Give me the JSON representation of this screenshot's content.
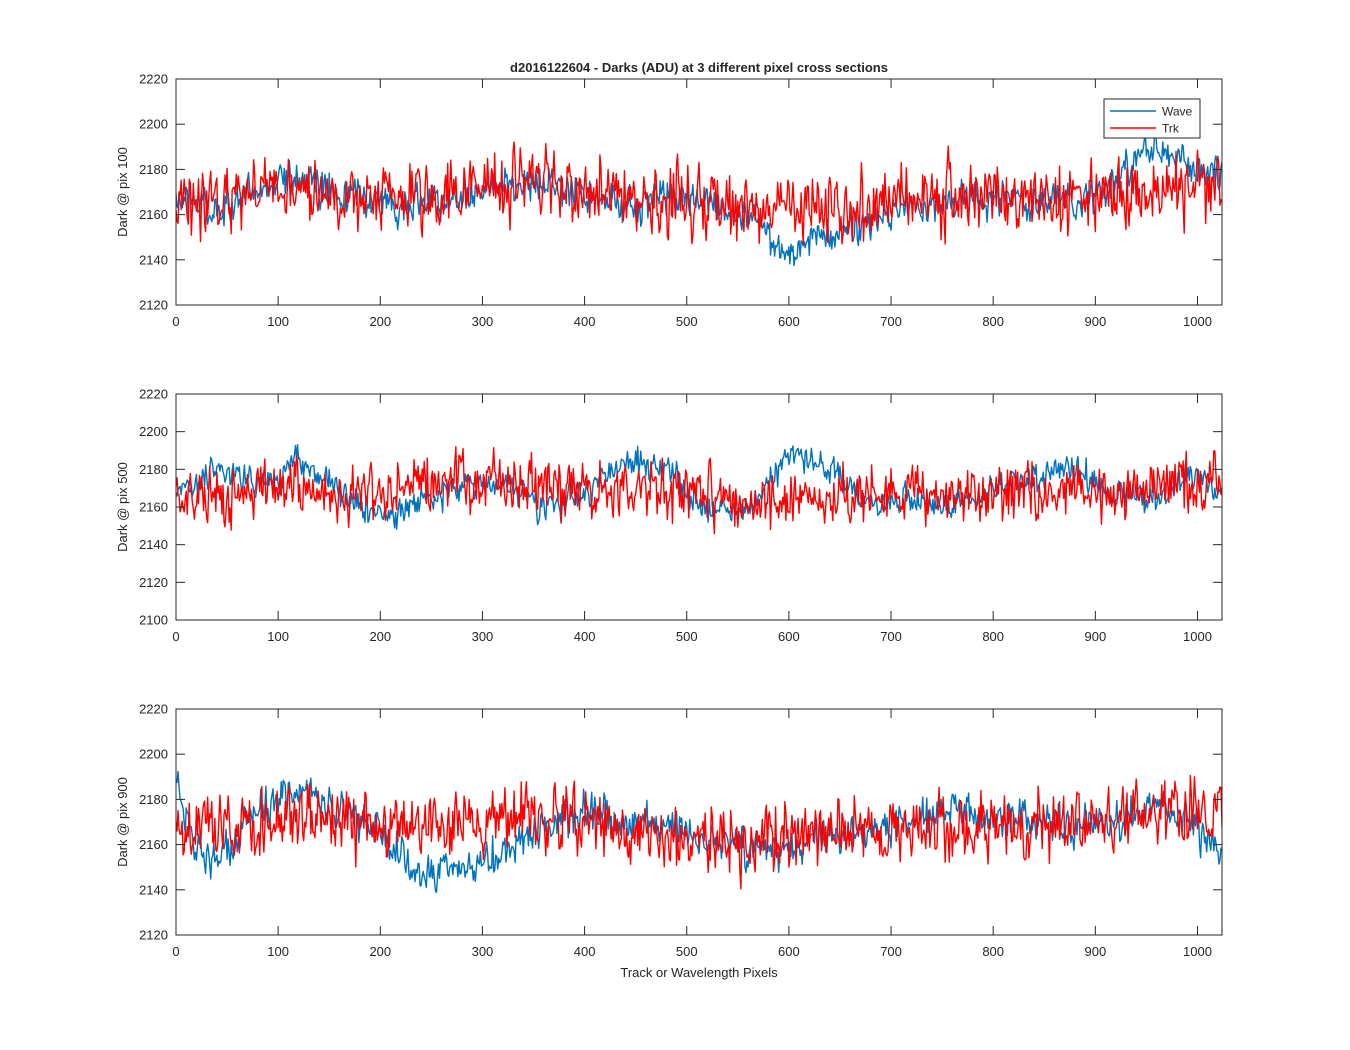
{
  "figure": {
    "title": "d2016122604 - Darks (ADU) at 3 different pixel cross sections",
    "xlabel": "Track or Wavelength Pixels"
  },
  "colors": {
    "wave": "#0072BD",
    "trk": "#FF0000",
    "axes": "#262626"
  },
  "chart_data": [
    {
      "type": "line",
      "ylabel": "Dark @ pix 100",
      "xlim": [
        0,
        1024
      ],
      "ylim": [
        2120,
        2220
      ],
      "xticks": [
        0,
        100,
        200,
        300,
        400,
        500,
        600,
        700,
        800,
        900,
        1000
      ],
      "yticks": [
        2120,
        2140,
        2160,
        2180,
        2200,
        2220
      ],
      "legend": {
        "position": "top-right",
        "entries": [
          "Wave",
          "Trk"
        ]
      },
      "grid": false,
      "series": [
        {
          "name": "Wave",
          "amplitude": 6,
          "x": [
            0,
            40,
            80,
            120,
            160,
            200,
            240,
            280,
            320,
            360,
            400,
            440,
            480,
            520,
            560,
            600,
            640,
            680,
            720,
            760,
            800,
            840,
            880,
            920,
            960,
            1000,
            1024
          ],
          "y": [
            2168,
            2162,
            2172,
            2176,
            2170,
            2164,
            2166,
            2168,
            2174,
            2174,
            2168,
            2162,
            2168,
            2166,
            2160,
            2144,
            2150,
            2156,
            2164,
            2166,
            2168,
            2166,
            2164,
            2176,
            2190,
            2180,
            2178
          ]
        },
        {
          "name": "Trk",
          "amplitude": 11,
          "x": [
            0,
            40,
            80,
            120,
            160,
            200,
            240,
            280,
            320,
            360,
            400,
            440,
            480,
            520,
            560,
            600,
            640,
            680,
            720,
            760,
            800,
            840,
            880,
            920,
            960,
            1000,
            1024
          ],
          "y": [
            2166,
            2168,
            2172,
            2172,
            2168,
            2168,
            2168,
            2172,
            2176,
            2174,
            2170,
            2168,
            2168,
            2166,
            2162,
            2162,
            2164,
            2164,
            2166,
            2168,
            2168,
            2166,
            2166,
            2170,
            2170,
            2172,
            2172
          ]
        }
      ]
    },
    {
      "type": "line",
      "ylabel": "Dark @ pix 500",
      "xlim": [
        0,
        1024
      ],
      "ylim": [
        2100,
        2220
      ],
      "xticks": [
        0,
        100,
        200,
        300,
        400,
        500,
        600,
        700,
        800,
        900,
        1000
      ],
      "yticks": [
        2100,
        2120,
        2140,
        2160,
        2180,
        2200,
        2220
      ],
      "grid": false,
      "series": [
        {
          "name": "Wave",
          "amplitude": 6,
          "x": [
            0,
            40,
            80,
            120,
            160,
            200,
            240,
            280,
            320,
            360,
            400,
            440,
            480,
            520,
            560,
            600,
            640,
            680,
            720,
            760,
            800,
            840,
            880,
            920,
            960,
            1000,
            1024
          ],
          "y": [
            2168,
            2182,
            2172,
            2184,
            2168,
            2154,
            2162,
            2172,
            2172,
            2160,
            2168,
            2184,
            2182,
            2156,
            2158,
            2186,
            2180,
            2162,
            2162,
            2162,
            2170,
            2176,
            2180,
            2164,
            2164,
            2178,
            2166
          ]
        },
        {
          "name": "Trk",
          "amplitude": 11,
          "x": [
            0,
            40,
            80,
            120,
            160,
            200,
            240,
            280,
            320,
            360,
            400,
            440,
            480,
            520,
            560,
            600,
            640,
            680,
            720,
            760,
            800,
            840,
            880,
            920,
            960,
            1000,
            1024
          ],
          "y": [
            2164,
            2166,
            2170,
            2170,
            2166,
            2170,
            2172,
            2174,
            2174,
            2172,
            2170,
            2170,
            2168,
            2166,
            2164,
            2162,
            2164,
            2166,
            2166,
            2168,
            2168,
            2168,
            2168,
            2168,
            2170,
            2172,
            2172
          ]
        }
      ]
    },
    {
      "type": "line",
      "ylabel": "Dark @ pix 900",
      "xlim": [
        0,
        1024
      ],
      "ylim": [
        2120,
        2220
      ],
      "xticks": [
        0,
        100,
        200,
        300,
        400,
        500,
        600,
        700,
        800,
        900,
        1000
      ],
      "yticks": [
        2120,
        2140,
        2160,
        2180,
        2200,
        2220
      ],
      "grid": false,
      "series": [
        {
          "name": "Wave",
          "amplitude": 6,
          "x": [
            0,
            20,
            40,
            80,
            120,
            160,
            200,
            240,
            280,
            320,
            360,
            400,
            440,
            480,
            520,
            560,
            600,
            640,
            680,
            720,
            760,
            800,
            840,
            880,
            920,
            960,
            1000,
            1024
          ],
          "y": [
            2190,
            2158,
            2150,
            2176,
            2184,
            2174,
            2166,
            2146,
            2150,
            2156,
            2168,
            2174,
            2170,
            2168,
            2162,
            2158,
            2156,
            2164,
            2166,
            2170,
            2176,
            2172,
            2170,
            2168,
            2170,
            2178,
            2168,
            2156
          ]
        },
        {
          "name": "Trk",
          "amplitude": 11,
          "x": [
            0,
            40,
            80,
            120,
            160,
            200,
            240,
            280,
            320,
            360,
            400,
            440,
            480,
            520,
            560,
            600,
            640,
            680,
            720,
            760,
            800,
            840,
            880,
            920,
            960,
            1000,
            1024
          ],
          "y": [
            2166,
            2166,
            2170,
            2172,
            2172,
            2168,
            2166,
            2170,
            2174,
            2172,
            2170,
            2166,
            2164,
            2162,
            2162,
            2164,
            2166,
            2166,
            2168,
            2168,
            2168,
            2168,
            2170,
            2172,
            2174,
            2176,
            2176
          ]
        }
      ]
    }
  ]
}
